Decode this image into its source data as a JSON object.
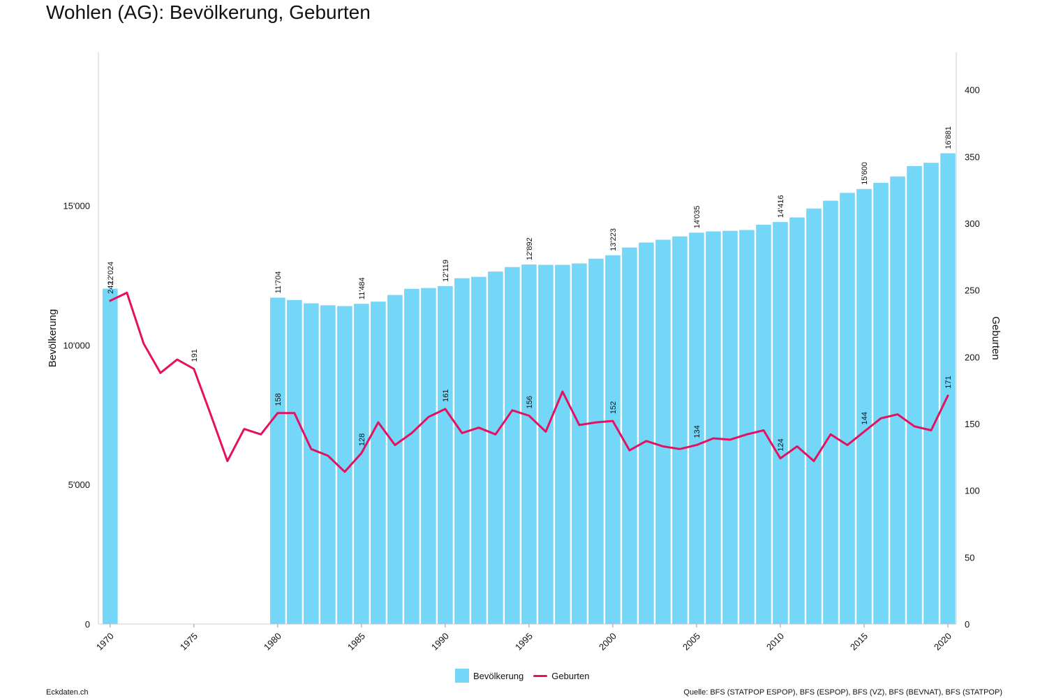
{
  "title": "Wohlen (AG): Bevölkerung, Geburten",
  "brand": "Eckdaten.ch",
  "source": "Quelle: BFS (STATPOP ESPOP), BFS (ESPOP), BFS (VZ), BFS (BEVNAT), BFS (STATPOP)",
  "colors": {
    "bars": "#74d7f7",
    "line": "#e5105f"
  },
  "chart_data": {
    "type": "bar+line",
    "title": "Wohlen (AG): Bevölkerung, Geburten",
    "ylabel_left": "Bevölkerung",
    "ylabel_right": "Geburten",
    "ylim_left": [
      0,
      20500
    ],
    "ylim_right": [
      0,
      428
    ],
    "yticks_left": [
      0,
      5000,
      10000,
      15000
    ],
    "yticks_left_labels": [
      "0",
      "5'000",
      "10'000",
      "15'000"
    ],
    "yticks_right": [
      0,
      50,
      100,
      150,
      200,
      250,
      300,
      350,
      400
    ],
    "xticks": [
      1970,
      1975,
      1980,
      1985,
      1990,
      1995,
      2000,
      2005,
      2010,
      2015,
      2020
    ],
    "legend_position": "bottom",
    "series": [
      {
        "name": "Bevölkerung",
        "axis": "left",
        "type": "bar",
        "x": [
          1970,
          1980,
          1981,
          1982,
          1983,
          1984,
          1985,
          1986,
          1987,
          1988,
          1989,
          1990,
          1991,
          1992,
          1993,
          1994,
          1995,
          1996,
          1997,
          1998,
          1999,
          2000,
          2001,
          2002,
          2003,
          2004,
          2005,
          2006,
          2007,
          2008,
          2009,
          2010,
          2011,
          2012,
          2013,
          2014,
          2015,
          2016,
          2017,
          2018,
          2019,
          2020
        ],
        "values": [
          12024,
          11704,
          11620,
          11500,
          11430,
          11400,
          11484,
          11560,
          11800,
          12020,
          12050,
          12119,
          12400,
          12450,
          12640,
          12800,
          12892,
          12880,
          12880,
          12930,
          13100,
          13223,
          13500,
          13680,
          13780,
          13900,
          14035,
          14080,
          14100,
          14130,
          14320,
          14416,
          14580,
          14900,
          15180,
          15460,
          15600,
          15820,
          16050,
          16420,
          16540,
          16881
        ]
      },
      {
        "name": "Geburten",
        "axis": "right",
        "type": "line",
        "x": [
          1970,
          1971,
          1972,
          1973,
          1974,
          1975,
          1976,
          1977,
          1978,
          1979,
          1980,
          1981,
          1982,
          1983,
          1984,
          1985,
          1986,
          1987,
          1988,
          1989,
          1990,
          1991,
          1992,
          1993,
          1994,
          1995,
          1996,
          1997,
          1998,
          1999,
          2000,
          2001,
          2002,
          2003,
          2004,
          2005,
          2006,
          2007,
          2008,
          2009,
          2010,
          2011,
          2012,
          2013,
          2014,
          2015,
          2016,
          2017,
          2018,
          2019,
          2020
        ],
        "values": [
          242,
          248,
          210,
          188,
          198,
          191,
          157,
          122,
          146,
          142,
          158,
          158,
          131,
          126,
          114,
          128,
          151,
          134,
          143,
          155,
          161,
          143,
          147,
          142,
          160,
          156,
          144,
          174,
          149,
          151,
          152,
          130,
          137,
          133,
          131,
          134,
          139,
          138,
          142,
          145,
          124,
          133,
          122,
          142,
          134,
          144,
          154,
          157,
          148,
          145,
          171
        ]
      }
    ],
    "bar_labels": [
      {
        "x": 1970,
        "text": "12'024"
      },
      {
        "x": 1980,
        "text": "11'704"
      },
      {
        "x": 1985,
        "text": "11'484"
      },
      {
        "x": 1990,
        "text": "12'119"
      },
      {
        "x": 1995,
        "text": "12'892"
      },
      {
        "x": 2000,
        "text": "13'223"
      },
      {
        "x": 2005,
        "text": "14'035"
      },
      {
        "x": 2010,
        "text": "14'416"
      },
      {
        "x": 2015,
        "text": "15'600"
      },
      {
        "x": 2020,
        "text": "16'881"
      }
    ],
    "line_labels": [
      {
        "x": 1970,
        "text": "242"
      },
      {
        "x": 1975,
        "text": "191"
      },
      {
        "x": 1980,
        "text": "158"
      },
      {
        "x": 1985,
        "text": "128"
      },
      {
        "x": 1990,
        "text": "161"
      },
      {
        "x": 1995,
        "text": "156"
      },
      {
        "x": 2000,
        "text": "152"
      },
      {
        "x": 2005,
        "text": "134"
      },
      {
        "x": 2010,
        "text": "124"
      },
      {
        "x": 2015,
        "text": "144"
      },
      {
        "x": 2020,
        "text": "171"
      }
    ]
  }
}
